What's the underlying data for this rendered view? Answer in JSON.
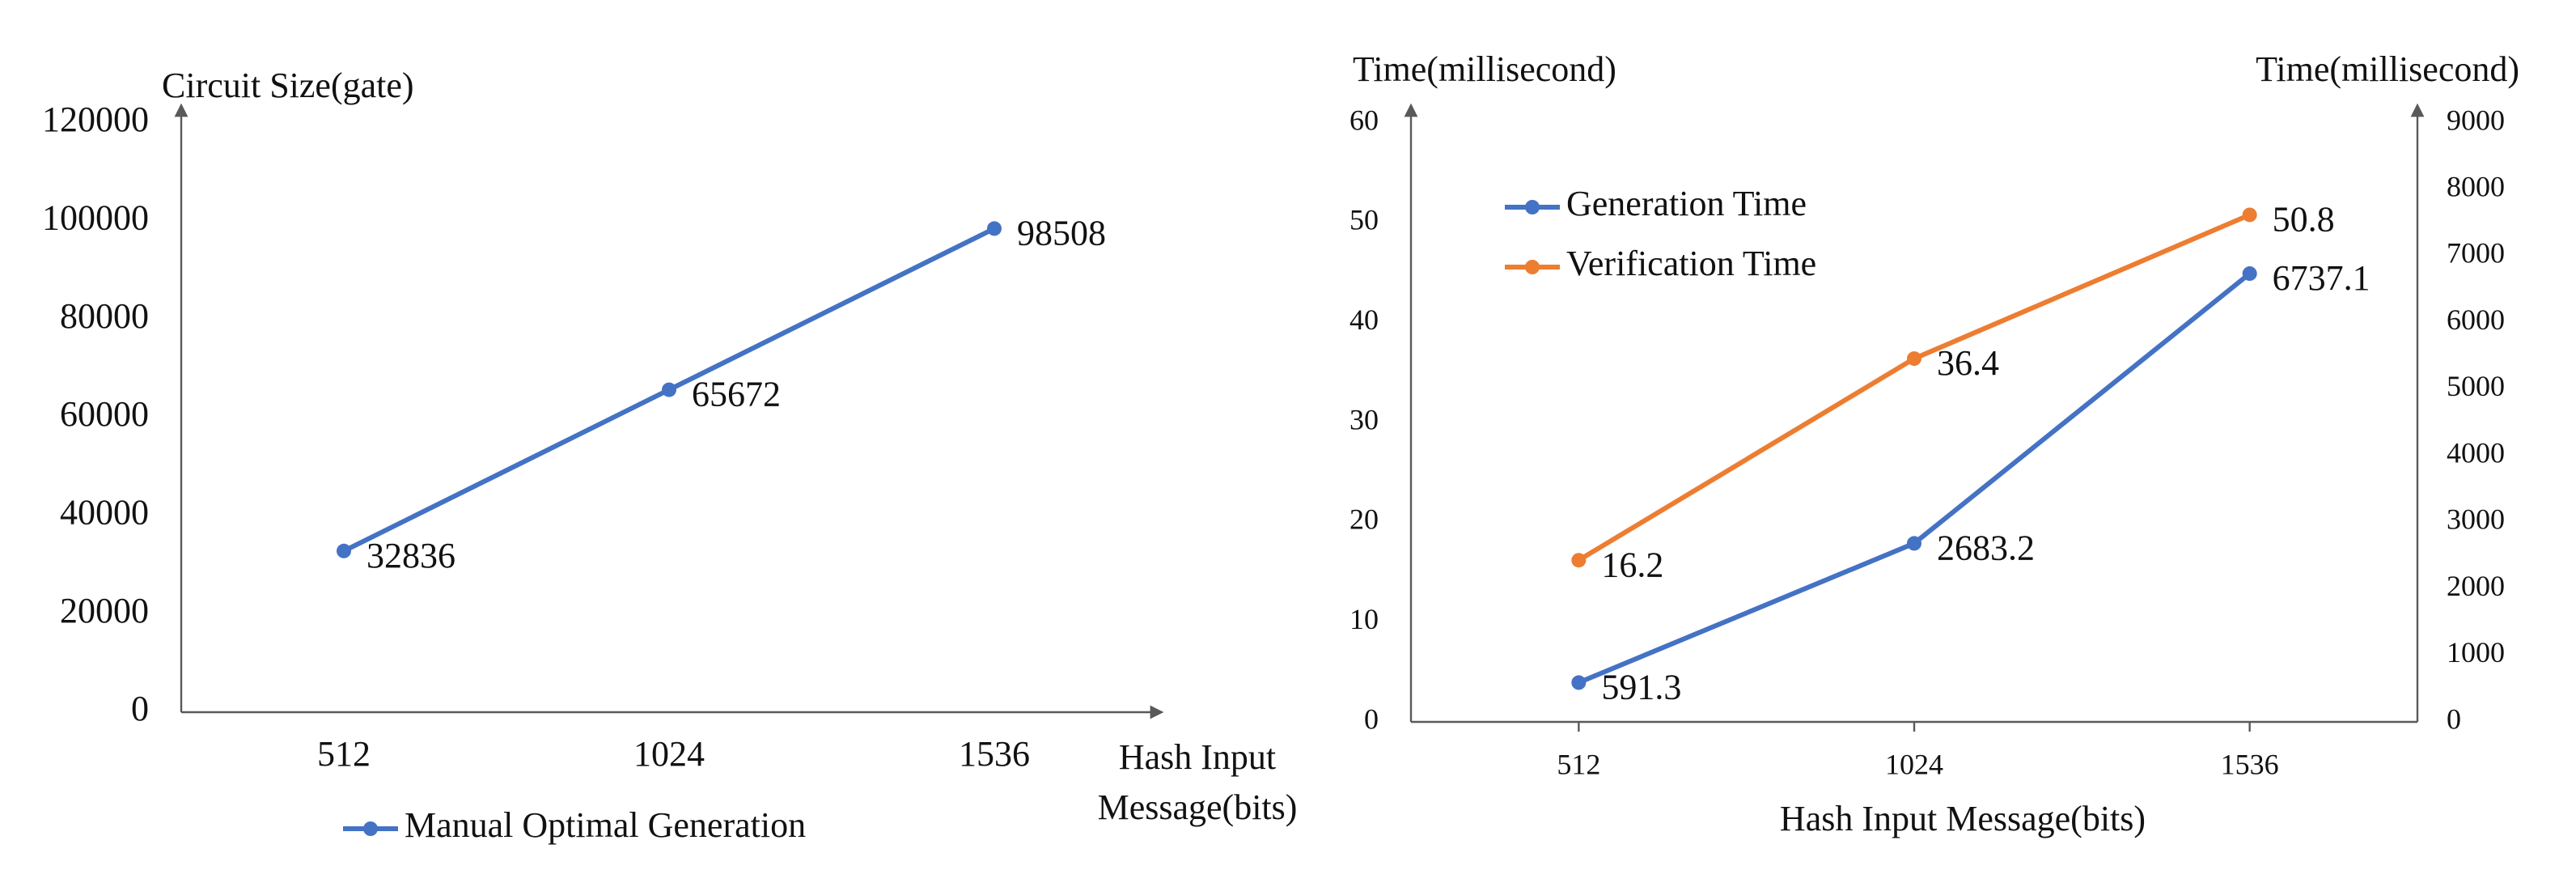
{
  "chart_data": [
    {
      "type": "line",
      "y_label": "Circuit Size(gate)",
      "x_label": [
        "Hash Input",
        "Message(bits)"
      ],
      "categories": [
        "512",
        "1024",
        "1536"
      ],
      "series": [
        {
          "name": "Manual Optimal Generation",
          "color": "#4472c4",
          "values": [
            32836,
            65672,
            98508
          ]
        }
      ],
      "ylim": [
        0,
        120000
      ],
      "yticks": [
        0,
        20000,
        40000,
        60000,
        80000,
        100000,
        120000
      ]
    },
    {
      "type": "line",
      "y_label": "Time(millisecond)",
      "y2_label": "Time(millisecond)",
      "x_label": [
        "Hash Input Message(bits)"
      ],
      "categories": [
        "512",
        "1024",
        "1536"
      ],
      "series": [
        {
          "name": "Generation Time",
          "color": "#4472c4",
          "axis": "y2",
          "values": [
            591.3,
            2683.2,
            6737.1
          ]
        },
        {
          "name": "Verification Time",
          "color": "#ed7d31",
          "values": [
            16.2,
            36.4,
            50.8
          ]
        }
      ],
      "ylim": [
        0,
        60
      ],
      "yticks": [
        0,
        10,
        20,
        30,
        40,
        50,
        60
      ],
      "y2lim": [
        0,
        9000
      ],
      "y2ticks": [
        0,
        1000,
        2000,
        3000,
        4000,
        5000,
        6000,
        7000,
        8000,
        9000
      ]
    }
  ]
}
